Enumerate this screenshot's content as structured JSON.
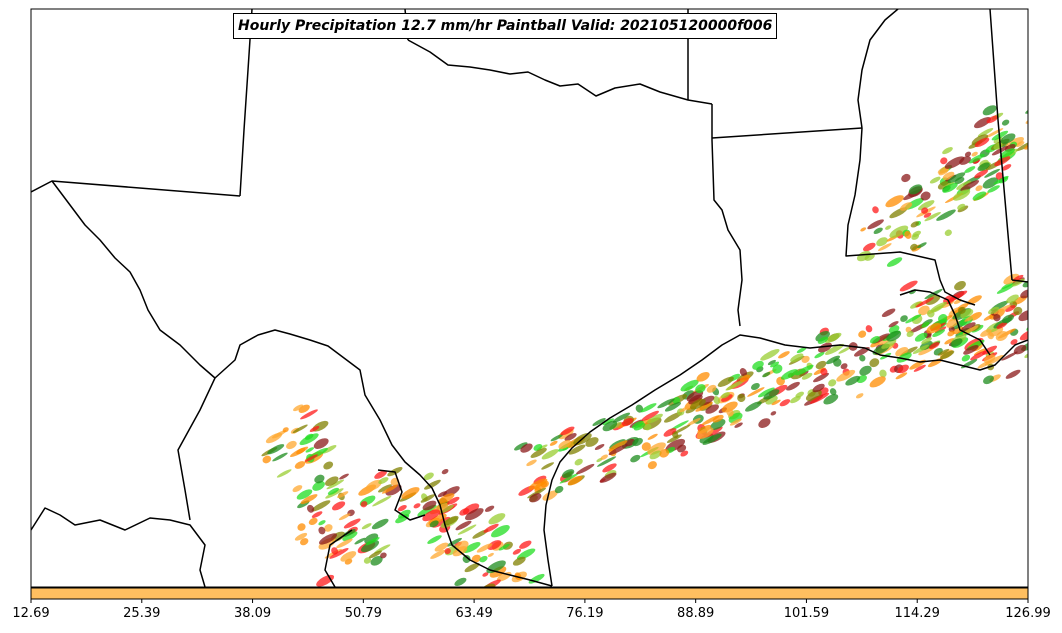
{
  "title": "Hourly Precipitation 12.7 mm/hr Paintball Valid: 202105120000f006",
  "colors": {
    "border": "#000000",
    "colorbar": "#ffbf60",
    "members": [
      "#ff1a1a",
      "#ff8c00",
      "#8b1a1a",
      "#9acd32",
      "#808000",
      "#1e8c1e",
      "#22dd22",
      "#ffa830"
    ]
  },
  "colorbar": {
    "ticks": [
      "12.69",
      "25.39",
      "38.09",
      "50.79",
      "63.49",
      "76.19",
      "88.89",
      "101.59",
      "114.29",
      "126.99"
    ]
  }
}
